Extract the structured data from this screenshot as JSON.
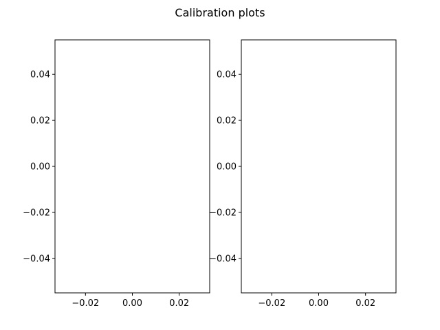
{
  "figure": {
    "title": "Calibration plots"
  },
  "chart_data": [
    {
      "type": "scatter",
      "title": "",
      "xlabel": "",
      "ylabel": "",
      "series": [],
      "xlim": [
        -0.033,
        0.033
      ],
      "ylim": [
        -0.055,
        0.055
      ],
      "xticks": [
        -0.02,
        0.0,
        0.02
      ],
      "xtick_labels": [
        "−0.02",
        "0.00",
        "0.02"
      ],
      "yticks": [
        -0.04,
        -0.02,
        0.0,
        0.02,
        0.04
      ],
      "ytick_labels": [
        "−0.04",
        "−0.02",
        "0.00",
        "0.02",
        "0.04"
      ],
      "grid": false
    },
    {
      "type": "scatter",
      "title": "",
      "xlabel": "",
      "ylabel": "",
      "series": [],
      "xlim": [
        -0.033,
        0.033
      ],
      "ylim": [
        -0.055,
        0.055
      ],
      "xticks": [
        -0.02,
        0.0,
        0.02
      ],
      "xtick_labels": [
        "−0.02",
        "0.00",
        "0.02"
      ],
      "yticks": [
        -0.04,
        -0.02,
        0.0,
        0.02,
        0.04
      ],
      "ytick_labels": [
        "−0.04",
        "−0.02",
        "0.00",
        "0.02",
        "0.04"
      ],
      "grid": false
    }
  ]
}
